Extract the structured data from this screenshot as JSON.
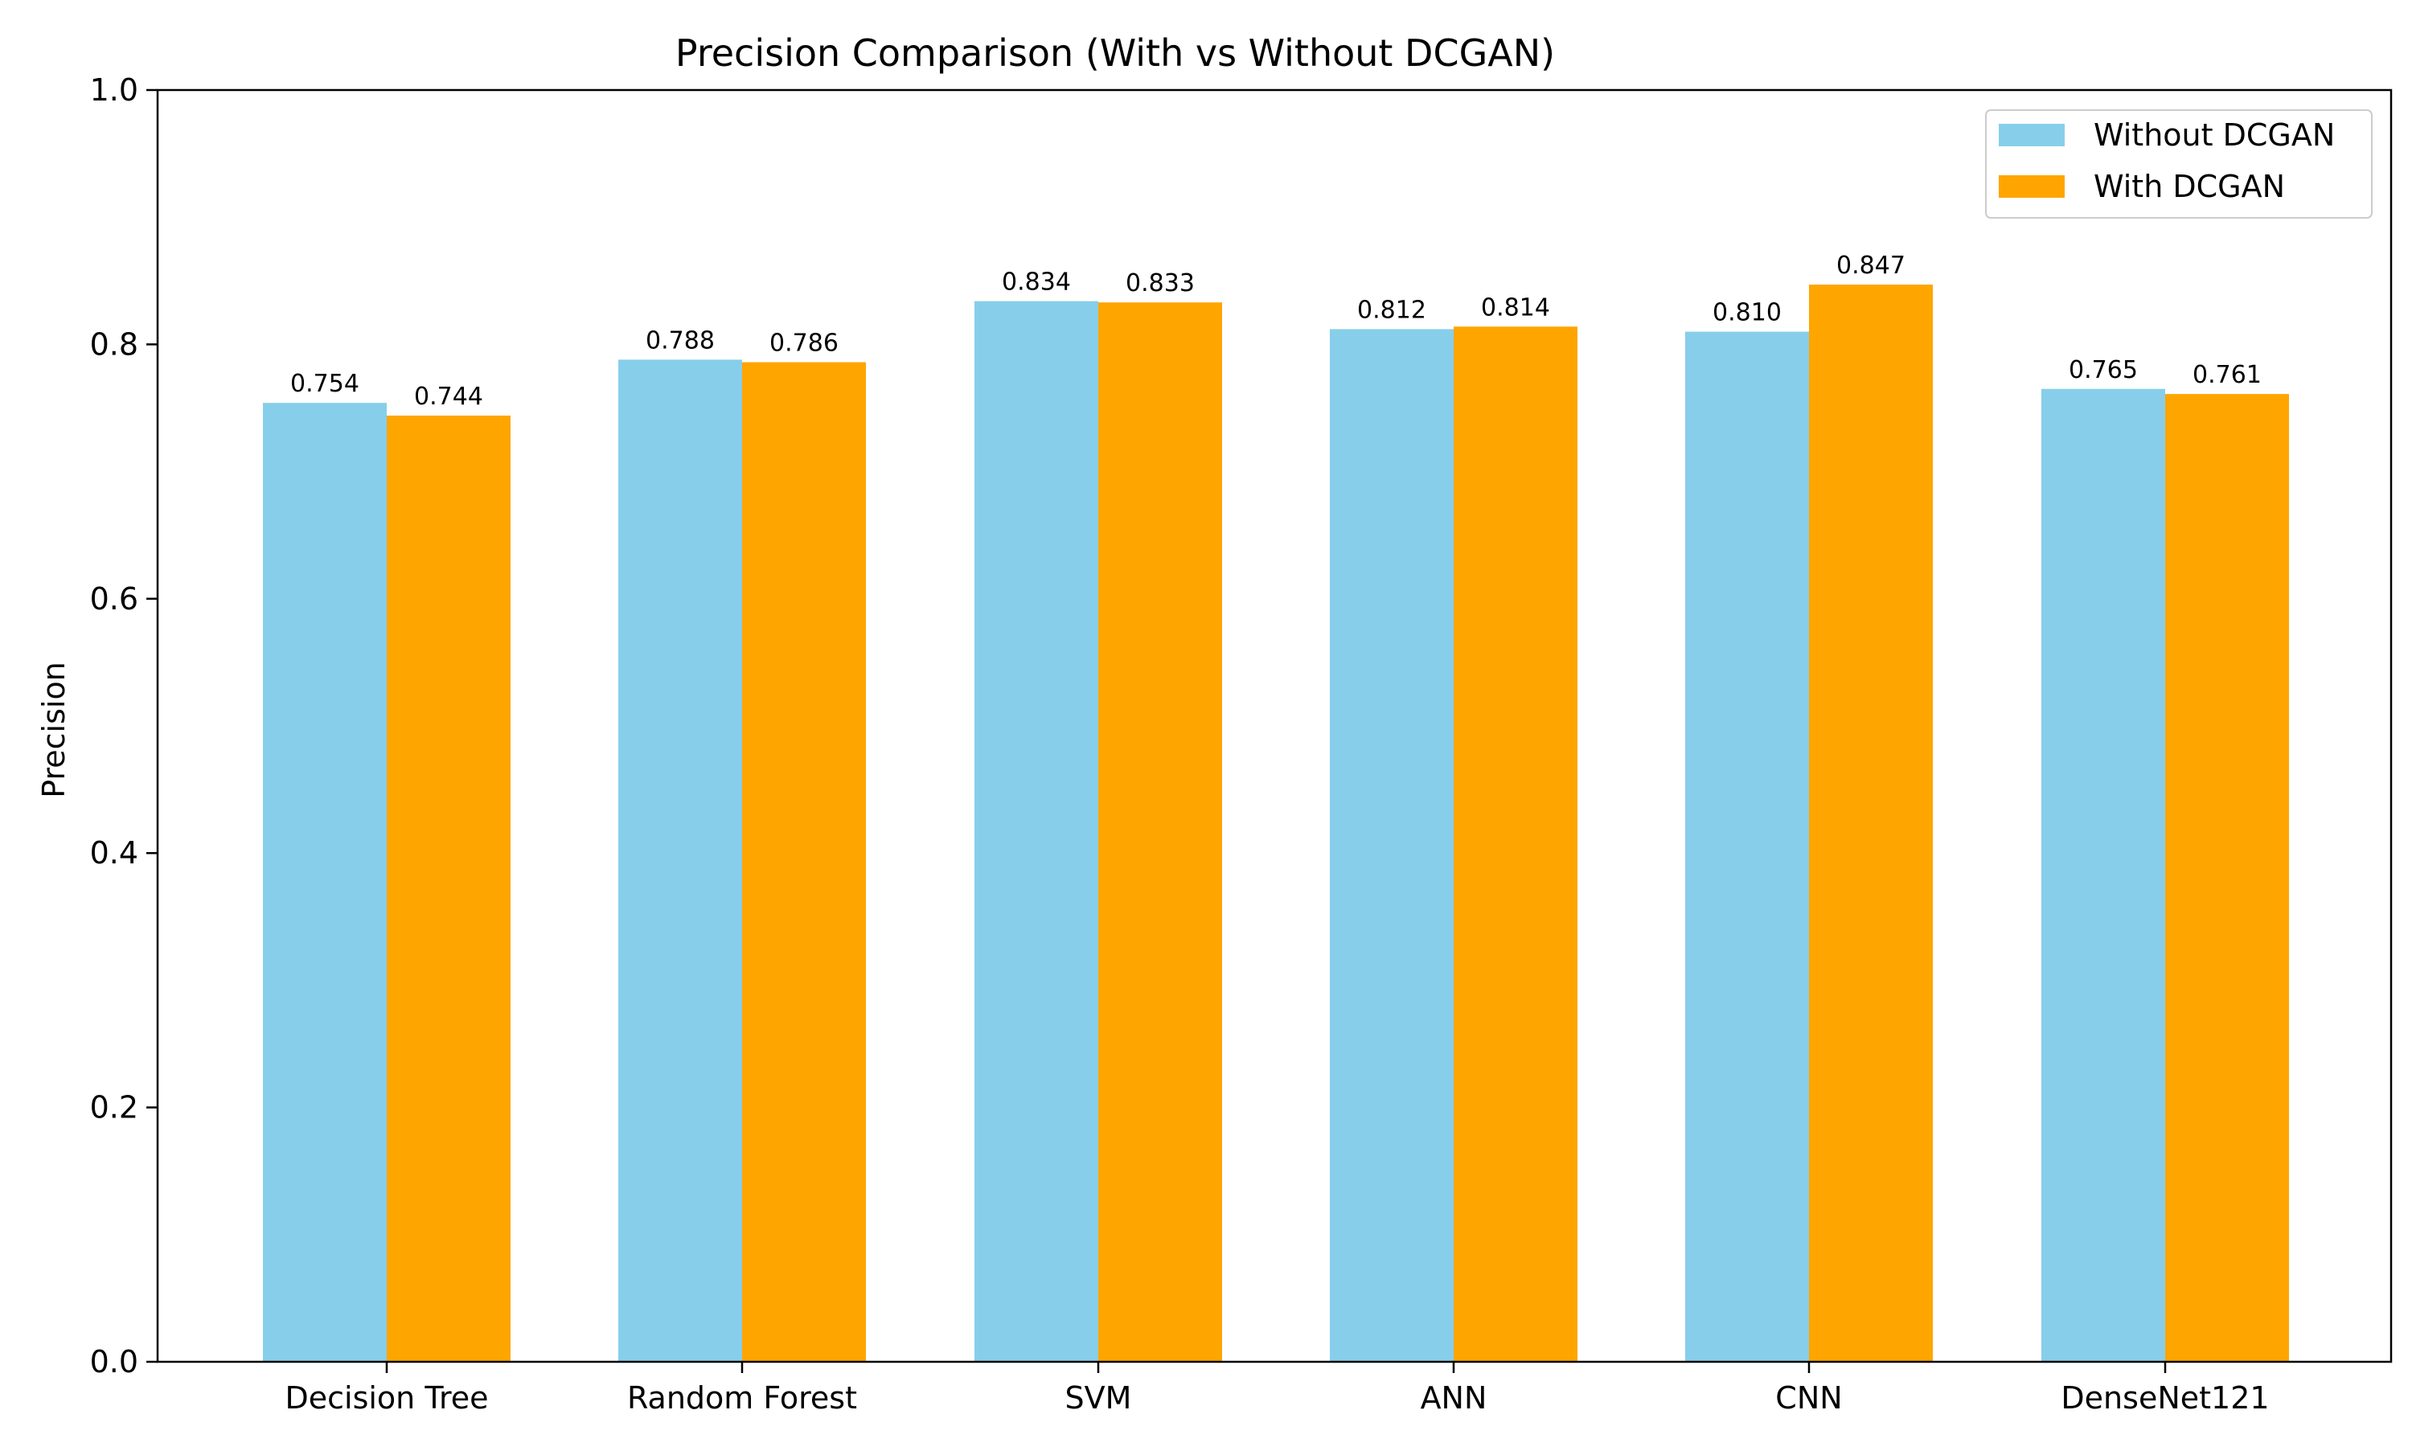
{
  "chart_data": {
    "type": "bar",
    "title": "Precision Comparison (With vs Without DCGAN)",
    "xlabel": "",
    "ylabel": "Precision",
    "categories": [
      "Decision Tree",
      "Random Forest",
      "SVM",
      "ANN",
      "CNN",
      "DenseNet121"
    ],
    "series": [
      {
        "name": "Without DCGAN",
        "color": "#87ceeb",
        "values": [
          0.754,
          0.788,
          0.834,
          0.812,
          0.81,
          0.765
        ],
        "labels": [
          "0.754",
          "0.788",
          "0.834",
          "0.812",
          "0.810",
          "0.765"
        ]
      },
      {
        "name": "With DCGAN",
        "color": "#ffa500",
        "values": [
          0.744,
          0.786,
          0.833,
          0.814,
          0.847,
          0.761
        ],
        "labels": [
          "0.744",
          "0.786",
          "0.833",
          "0.814",
          "0.847",
          "0.761"
        ]
      }
    ],
    "ylim": [
      0,
      1.0
    ],
    "yticks": [
      "0.0",
      "0.2",
      "0.4",
      "0.6",
      "0.8",
      "1.0"
    ],
    "grid": false,
    "legend_position": "top-right"
  }
}
